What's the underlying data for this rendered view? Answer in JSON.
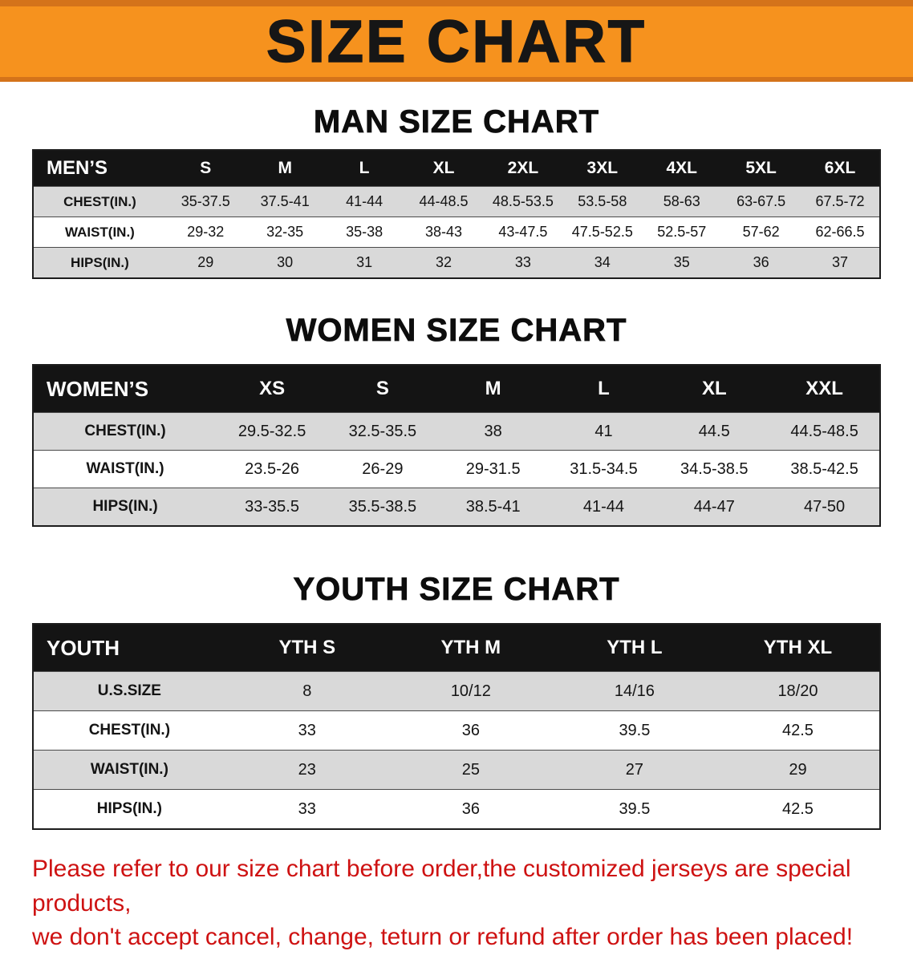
{
  "banner": {
    "title": "SIZE CHART"
  },
  "sections": [
    {
      "heading": "MAN SIZE CHART",
      "table": {
        "header": [
          "MEN’S",
          "S",
          "M",
          "L",
          "XL",
          "2XL",
          "3XL",
          "4XL",
          "5XL",
          "6XL"
        ],
        "rows": [
          [
            "CHEST(IN.)",
            "35-37.5",
            "37.5-41",
            "41-44",
            "44-48.5",
            "48.5-53.5",
            "53.5-58",
            "58-63",
            "63-67.5",
            "67.5-72"
          ],
          [
            "WAIST(IN.)",
            "29-32",
            "32-35",
            "35-38",
            "38-43",
            "43-47.5",
            "47.5-52.5",
            "52.5-57",
            "57-62",
            "62-66.5"
          ],
          [
            "HIPS(IN.)",
            "29",
            "30",
            "31",
            "32",
            "33",
            "34",
            "35",
            "36",
            "37"
          ]
        ]
      }
    },
    {
      "heading": "WOMEN SIZE CHART",
      "table": {
        "header": [
          "WOMEN’S",
          "XS",
          "S",
          "M",
          "L",
          "XL",
          "XXL"
        ],
        "rows": [
          [
            "CHEST(IN.)",
            "29.5-32.5",
            "32.5-35.5",
            "38",
            "41",
            "44.5",
            "44.5-48.5"
          ],
          [
            "WAIST(IN.)",
            "23.5-26",
            "26-29",
            "29-31.5",
            "31.5-34.5",
            "34.5-38.5",
            "38.5-42.5"
          ],
          [
            "HIPS(IN.)",
            "33-35.5",
            "35.5-38.5",
            "38.5-41",
            "41-44",
            "44-47",
            "47-50"
          ]
        ]
      }
    },
    {
      "heading": "YOUTH SIZE CHART",
      "table": {
        "header": [
          "YOUTH",
          "YTH S",
          "YTH M",
          "YTH L",
          "YTH XL"
        ],
        "rows": [
          [
            "U.S.SIZE",
            "8",
            "10/12",
            "14/16",
            "18/20"
          ],
          [
            "CHEST(IN.)",
            "33",
            "36",
            "39.5",
            "42.5"
          ],
          [
            "WAIST(IN.)",
            "23",
            "25",
            "27",
            "29"
          ],
          [
            "HIPS(IN.)",
            "33",
            "36",
            "39.5",
            "42.5"
          ]
        ]
      }
    }
  ],
  "footer": {
    "line1": "Please refer to our size chart before order,the customized jerseys are special products,",
    "line2": "we don't accept cancel, change, teturn or refund after order has been placed!"
  },
  "colors": {
    "banner_bg": "#f6921e",
    "banner_trim": "#d4731a",
    "table_header_bg": "#141414",
    "row_shaded": "#d9d9d9",
    "footer_text": "#ce1212"
  }
}
